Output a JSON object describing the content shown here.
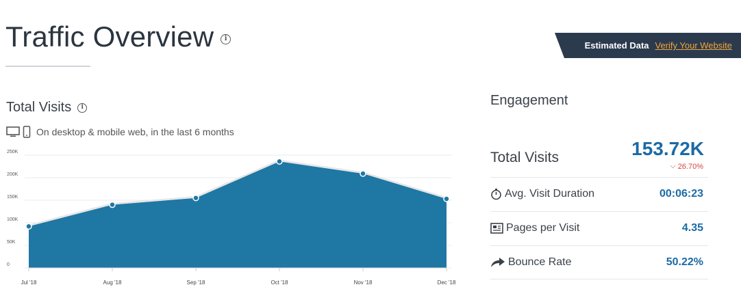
{
  "header": {
    "title": "Traffic Overview",
    "estimated_label": "Estimated Data",
    "verify_link": "Verify Your Website"
  },
  "total_visits_section": {
    "title": "Total Visits",
    "device_note": "On desktop & mobile web, in the last 6 months"
  },
  "chart_data": {
    "type": "area",
    "categories": [
      "Jul '18",
      "Aug '18",
      "Sep '18",
      "Oct '18",
      "Nov '18",
      "Dec '18"
    ],
    "values": [
      92000,
      140000,
      155000,
      236000,
      209000,
      153000
    ],
    "y_ticks": [
      "0",
      "50K",
      "100K",
      "150K",
      "200K",
      "250K"
    ],
    "ylim": [
      0,
      250000
    ],
    "grid": true,
    "colors": {
      "fill": "#1f77a4",
      "line": "#e6e6e6",
      "point": "#1f77a4"
    }
  },
  "engagement": {
    "title": "Engagement",
    "total_visits_label": "Total Visits",
    "total_visits_value": "153.72K",
    "total_visits_change": "26.70%",
    "metrics": [
      {
        "label": "Avg. Visit Duration",
        "value": "00:06:23",
        "icon": "stopwatch-icon"
      },
      {
        "label": "Pages per Visit",
        "value": "4.35",
        "icon": "pages-icon"
      },
      {
        "label": "Bounce Rate",
        "value": "50.22%",
        "icon": "bounce-arrow-icon"
      }
    ],
    "colors": {
      "value": "#1b6aa5",
      "negative": "#d64545"
    }
  }
}
